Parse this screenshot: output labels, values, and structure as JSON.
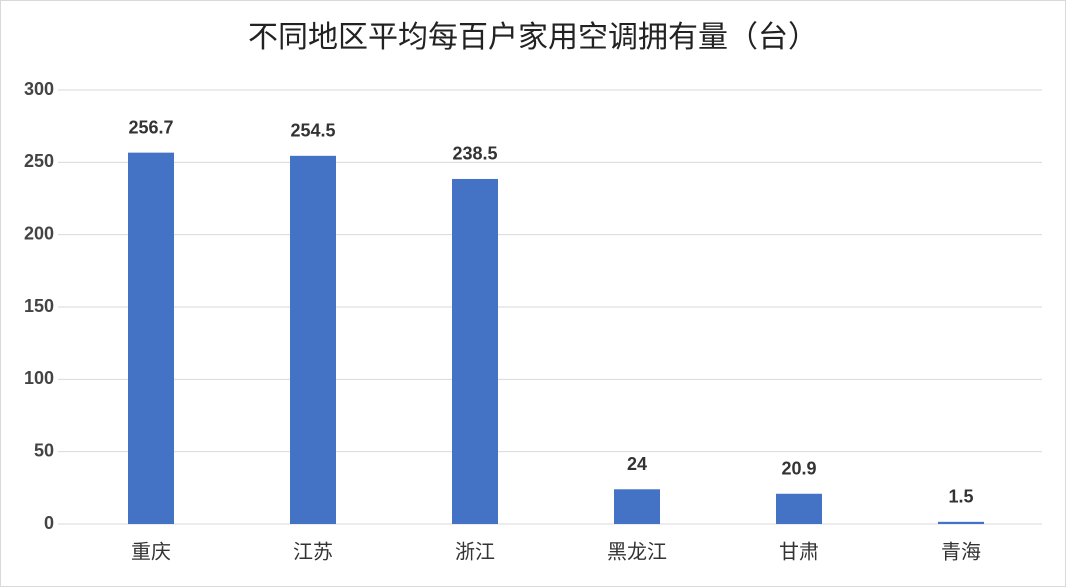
{
  "chart_data": {
    "type": "bar",
    "title": "不同地区平均每百户家用空调拥有量（台）",
    "categories": [
      "重庆",
      "江苏",
      "浙江",
      "黑龙江",
      "甘肃",
      "青海"
    ],
    "values": [
      256.7,
      254.5,
      238.5,
      24,
      20.9,
      1.5
    ],
    "color": "#4472c4",
    "ylim": [
      0,
      300
    ],
    "yticks": [
      0,
      50,
      100,
      150,
      200,
      250,
      300
    ],
    "grid": true
  }
}
